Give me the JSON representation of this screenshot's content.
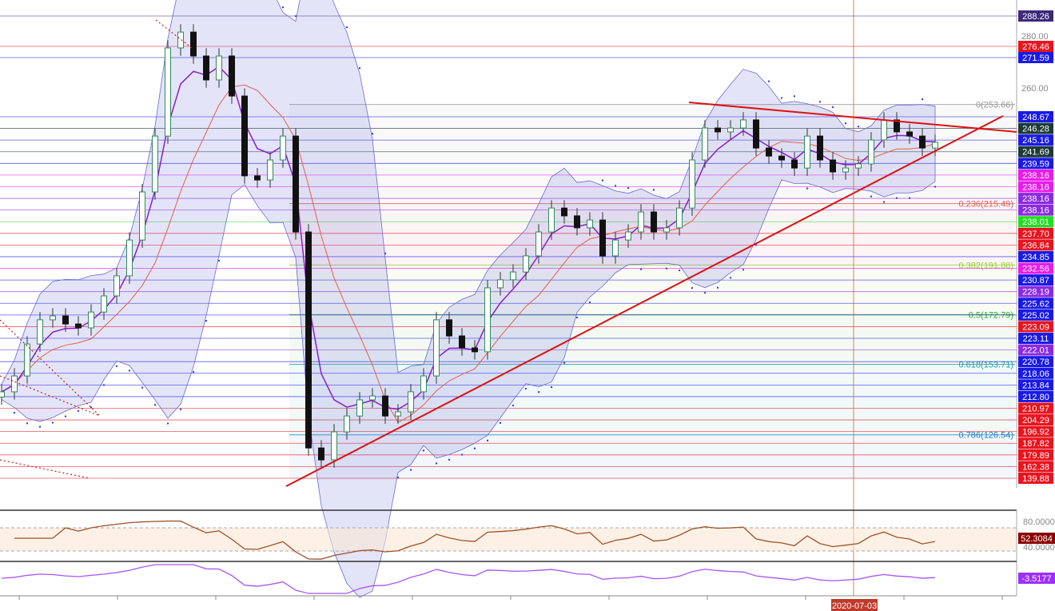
{
  "chart_data": {
    "type": "candlestick",
    "ylim": [
      109,
      295
    ],
    "price_ticks": [
      "280.00",
      "260.00"
    ],
    "closes": [
      143.1,
      149.2,
      161.5,
      170.8,
      172.3,
      169.2,
      167.7,
      173.8,
      180.0,
      187.7,
      201.5,
      220.0,
      241.5,
      275.4,
      281.5,
      272.3,
      263.1,
      272.3,
      256.9,
      226.2,
      224.6,
      232.3,
      241.5,
      204.6,
      121.5,
      116.9,
      127.7,
      133.8,
      140.0,
      141.5,
      133.8,
      135.4,
      143.1,
      149.2,
      170.8,
      164.6,
      160.0,
      158.5,
      183.1,
      186.2,
      189.2,
      195.4,
      204.6,
      213.8,
      210.8,
      206.2,
      209.2,
      195.4,
      201.5,
      204.6,
      212.3,
      204.6,
      206.2,
      213.8,
      232.3,
      244.6,
      243.1,
      244.6,
      247.7,
      236.9,
      233.8,
      232.3,
      229.2,
      241.5,
      232.3,
      227.7,
      229.2,
      230.8,
      240.0,
      247.7,
      243.1,
      241.5,
      236.9,
      239.1
    ],
    "price_labels": [
      {
        "text": "288.26",
        "color": "#3b2a7a"
      },
      {
        "text": "276.46",
        "color": "#e8141e"
      },
      {
        "text": "271.59",
        "color": "#1a1ae6"
      },
      {
        "text": "248.67",
        "color": "#1a1ae6"
      },
      {
        "text": "246.28",
        "color": "#1d3a3a"
      },
      {
        "text": "245.16",
        "color": "#1a1ae6"
      },
      {
        "text": "241.69",
        "color": "#1d3a3a"
      },
      {
        "text": "239.59",
        "color": "#1a1ae6"
      },
      {
        "text": "238.16",
        "color": "#e81ce8"
      },
      {
        "text": "238.16",
        "color": "#e81ce8"
      },
      {
        "text": "238.16",
        "color": "#8a2be2"
      },
      {
        "text": "238.16",
        "color": "#8a2be2"
      },
      {
        "text": "238.01",
        "color": "#22dd22"
      },
      {
        "text": "237.70",
        "color": "#e8141e"
      },
      {
        "text": "236.84",
        "color": "#e8141e"
      },
      {
        "text": "234.85",
        "color": "#1a1ae6"
      },
      {
        "text": "232.56",
        "color": "#e81ce8"
      },
      {
        "text": "230.87",
        "color": "#1a1ae6"
      },
      {
        "text": "228.19",
        "color": "#8a2be2"
      },
      {
        "text": "225.62",
        "color": "#1a1ae6"
      },
      {
        "text": "225.02",
        "color": "#1a1ae6"
      },
      {
        "text": "223.09",
        "color": "#e8141e"
      },
      {
        "text": "223.11",
        "color": "#1a1ae6"
      },
      {
        "text": "222.01",
        "color": "#8a2be2"
      },
      {
        "text": "220.78",
        "color": "#1a1ae6"
      },
      {
        "text": "218.06",
        "color": "#1a1ae6"
      },
      {
        "text": "213.84",
        "color": "#1a1ae6"
      },
      {
        "text": "212.80",
        "color": "#1a1ae6"
      },
      {
        "text": "210.97",
        "color": "#e8141e"
      },
      {
        "text": "204.29",
        "color": "#e8141e"
      },
      {
        "text": "196.92",
        "color": "#e8141e"
      },
      {
        "text": "187.82",
        "color": "#e8141e"
      },
      {
        "text": "179.89",
        "color": "#e8141e"
      },
      {
        "text": "162.38",
        "color": "#e8141e"
      },
      {
        "text": "139.88",
        "color": "#e8141e"
      }
    ],
    "fibonacci": [
      {
        "text": "0(253.66)",
        "value": 253.66,
        "color": "#999999"
      },
      {
        "text": "0.236(215.49)",
        "value": 215.49,
        "color": "#e05a5a"
      },
      {
        "text": "0.382(191.88)",
        "value": 191.88,
        "color": "#9acd32"
      },
      {
        "text": "0.5(172.79)",
        "value": 172.79,
        "color": "#2eaa2e"
      },
      {
        "text": "0.618(153.71)",
        "value": 153.71,
        "color": "#20a0a0"
      },
      {
        "text": "0.786(126.54)",
        "value": 126.54,
        "color": "#2a7fc0"
      }
    ],
    "rsi": {
      "ticks": [
        "80.0000",
        "40.0000"
      ],
      "current": "52.3084",
      "current_color": "#8b0000",
      "line_color": "#a0522d"
    },
    "oscillator": {
      "current": "-3.5177",
      "current_color": "#9b30ff",
      "line_color": "#a855f7"
    },
    "crosshair_date": "2020-07-03",
    "colors": {
      "up": "#2e8b57",
      "down": "#111111",
      "bands": "#6a6ad8",
      "ema": "#8a1ecf",
      "sma": "#e0604a",
      "trend": "#dd1111"
    }
  }
}
